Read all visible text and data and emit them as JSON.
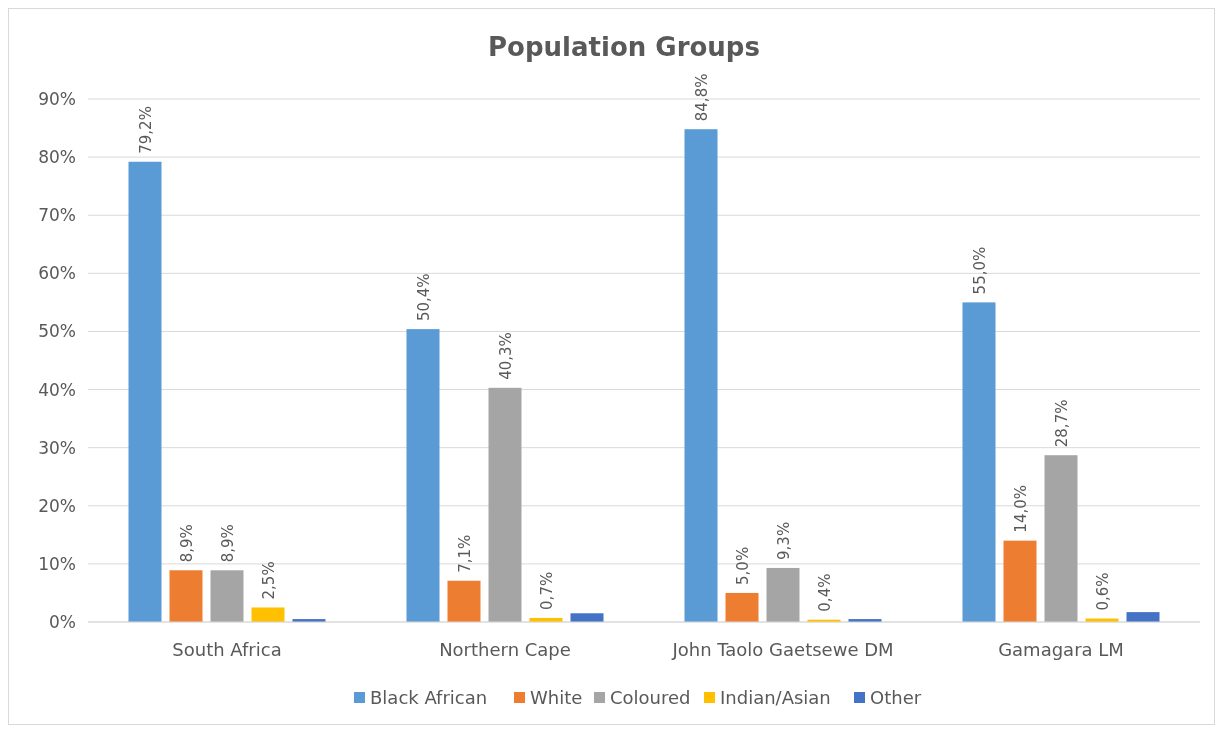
{
  "chart_data": {
    "type": "bar",
    "title": "Population Groups",
    "categories": [
      "South Africa",
      "Northern Cape",
      "John Taolo Gaetsewe DM",
      "Gamagara LM"
    ],
    "series": [
      {
        "name": "Black African",
        "color": "#5b9bd5",
        "values": [
          79.2,
          50.4,
          84.8,
          55.0
        ],
        "value_labels": [
          "79,2%",
          "50,4%",
          "84,8%",
          "55,0%"
        ]
      },
      {
        "name": "White",
        "color": "#ed7d31",
        "values": [
          8.9,
          7.1,
          5.0,
          14.0
        ],
        "value_labels": [
          "8,9%",
          "7,1%",
          "5,0%",
          "14,0%"
        ]
      },
      {
        "name": "Coloured",
        "color": "#a5a5a5",
        "values": [
          8.9,
          40.3,
          9.3,
          28.7
        ],
        "value_labels": [
          "8,9%",
          "40,3%",
          "9,3%",
          "28,7%"
        ]
      },
      {
        "name": "Indian/Asian",
        "color": "#ffc000",
        "values": [
          2.5,
          0.7,
          0.4,
          0.6
        ],
        "value_labels": [
          "2,5%",
          "0,7%",
          "0,4%",
          "0,6%"
        ]
      },
      {
        "name": "Other",
        "color": "#4472c4",
        "values": [
          0.5,
          1.5,
          0.5,
          1.7
        ]
      }
    ],
    "ylim": [
      0,
      90
    ],
    "yticks": [
      {
        "value": 0,
        "label": "0%"
      },
      {
        "value": 10,
        "label": "10%"
      },
      {
        "value": 20,
        "label": "20%"
      },
      {
        "value": 30,
        "label": "30%"
      },
      {
        "value": 40,
        "label": "40%"
      },
      {
        "value": 50,
        "label": "50%"
      },
      {
        "value": 60,
        "label": "60%"
      },
      {
        "value": 70,
        "label": "70%"
      },
      {
        "value": 80,
        "label": "80%"
      },
      {
        "value": 90,
        "label": "90%"
      }
    ],
    "grid": "y",
    "legend": "bottom"
  }
}
